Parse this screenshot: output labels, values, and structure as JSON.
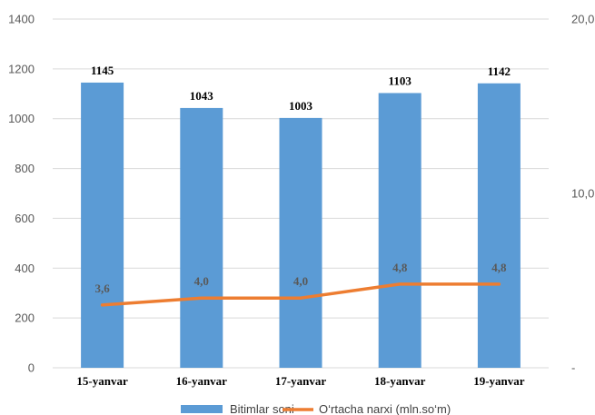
{
  "chart_data": {
    "type": "bar",
    "categories": [
      "15-yanvar",
      "16-yanvar",
      "17-yanvar",
      "18-yanvar",
      "19-yanvar"
    ],
    "series": [
      {
        "name": "Bitimlar soni",
        "type": "bar",
        "axis": "left",
        "color": "#5b9bd5",
        "values": [
          1145,
          1043,
          1003,
          1103,
          1142
        ],
        "labels": [
          "1145",
          "1043",
          "1003",
          "1103",
          "1142"
        ]
      },
      {
        "name": "O‘rtacha narxi (mln.so‘m)",
        "type": "line",
        "axis": "right",
        "color": "#ed7d31",
        "values": [
          3.6,
          4.0,
          4.0,
          4.8,
          4.8
        ],
        "labels": [
          "3,6",
          "4,0",
          "4,0",
          "4,8",
          "4,8"
        ]
      }
    ],
    "left_axis": {
      "ylim": [
        0,
        1400
      ],
      "ticks": [
        0,
        200,
        400,
        600,
        800,
        1000,
        1200,
        1400
      ],
      "tick_labels": [
        "0",
        "200",
        "400",
        "600",
        "800",
        "1000",
        "1200",
        "1400"
      ]
    },
    "right_axis": {
      "ylim": [
        0,
        20
      ],
      "ticks": [
        0,
        10,
        20
      ],
      "tick_labels": [
        "-",
        "10,0",
        "20,0"
      ]
    },
    "grid": true,
    "legend": "bottom"
  }
}
